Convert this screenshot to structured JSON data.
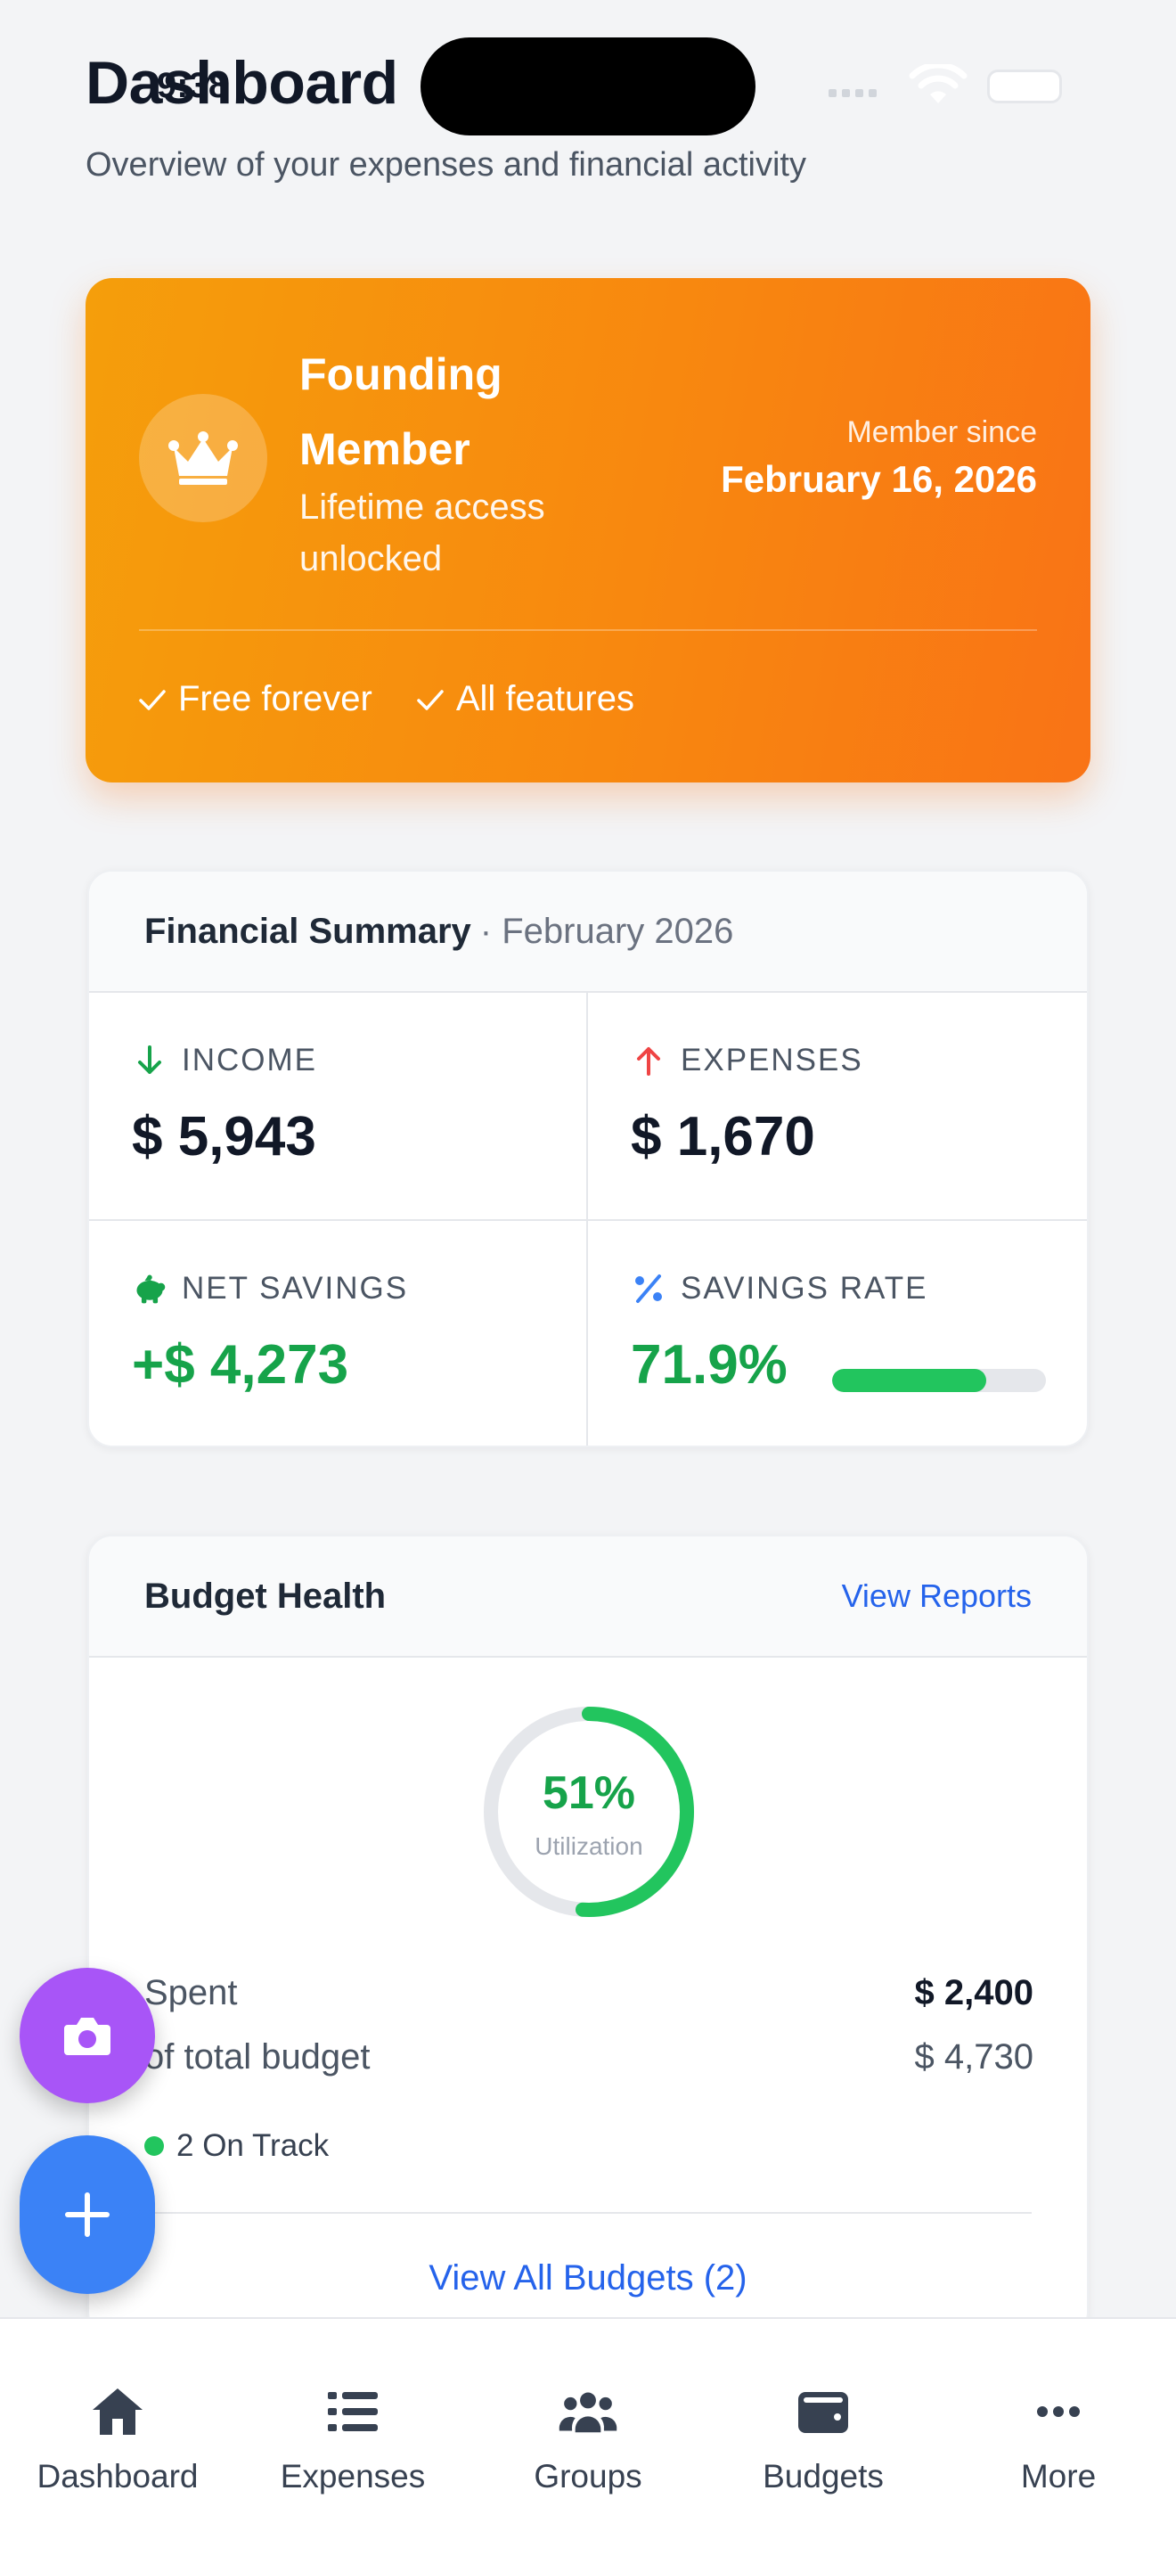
{
  "status_bar": {
    "time": "9:38"
  },
  "header": {
    "title": "Dashboard",
    "subtitle": "Overview of your expenses and financial activity"
  },
  "founder": {
    "title": "Founding Member",
    "subtitle": "Lifetime access unlocked",
    "member_since_label": "Member since",
    "member_since_date": "February 16, 2026",
    "perks": [
      "Free forever",
      "All features"
    ],
    "icon": "crown-icon"
  },
  "summary": {
    "title": "Financial Summary",
    "period": "· February 2026",
    "income": {
      "label": "INCOME",
      "value": "$ 5,943",
      "icon": "arrow-down-icon"
    },
    "expenses": {
      "label": "EXPENSES",
      "value": "$ 1,670",
      "icon": "arrow-up-icon"
    },
    "net_savings": {
      "label": "NET SAVINGS",
      "value": "+$ 4,273",
      "icon": "piggy-bank-icon"
    },
    "savings_rate": {
      "label": "SAVINGS RATE",
      "value": "71.9%",
      "icon": "percent-icon",
      "fraction": 0.719
    }
  },
  "budget": {
    "title": "Budget Health",
    "view_reports": "View Reports",
    "utilization_pct": "51%",
    "utilization_label": "Utilization",
    "utilization_fraction": 0.51,
    "spent_label": "Spent",
    "spent_value": "$ 2,400",
    "total_label": "of total budget",
    "total_value": "$ 4,730",
    "on_track": "2 On Track",
    "view_all": "View All Budgets (2)"
  },
  "fabs": {
    "camera_icon": "camera-icon",
    "add_icon": "plus-icon"
  },
  "nav": [
    {
      "label": "Dashboard",
      "icon": "home-icon"
    },
    {
      "label": "Expenses",
      "icon": "list-icon"
    },
    {
      "label": "Groups",
      "icon": "users-icon"
    },
    {
      "label": "Budgets",
      "icon": "wallet-icon"
    },
    {
      "label": "More",
      "icon": "more-icon"
    }
  ],
  "colors": {
    "accent_blue": "#2563eb",
    "success_green": "#16a34a",
    "expense_red": "#ef4444",
    "founder_orange": "#f97316",
    "camera_purple": "#a855f7"
  }
}
